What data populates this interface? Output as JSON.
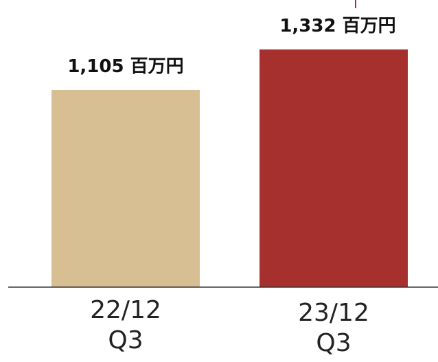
{
  "chart_data": {
    "type": "bar",
    "categories": [
      "22/12\nQ3",
      "23/12\nQ3"
    ],
    "values": [
      1105,
      1332
    ],
    "value_labels": [
      "1,105 百万円",
      "1,332 百万円"
    ],
    "colors": [
      "#d8bf93",
      "#a6302e"
    ]
  }
}
